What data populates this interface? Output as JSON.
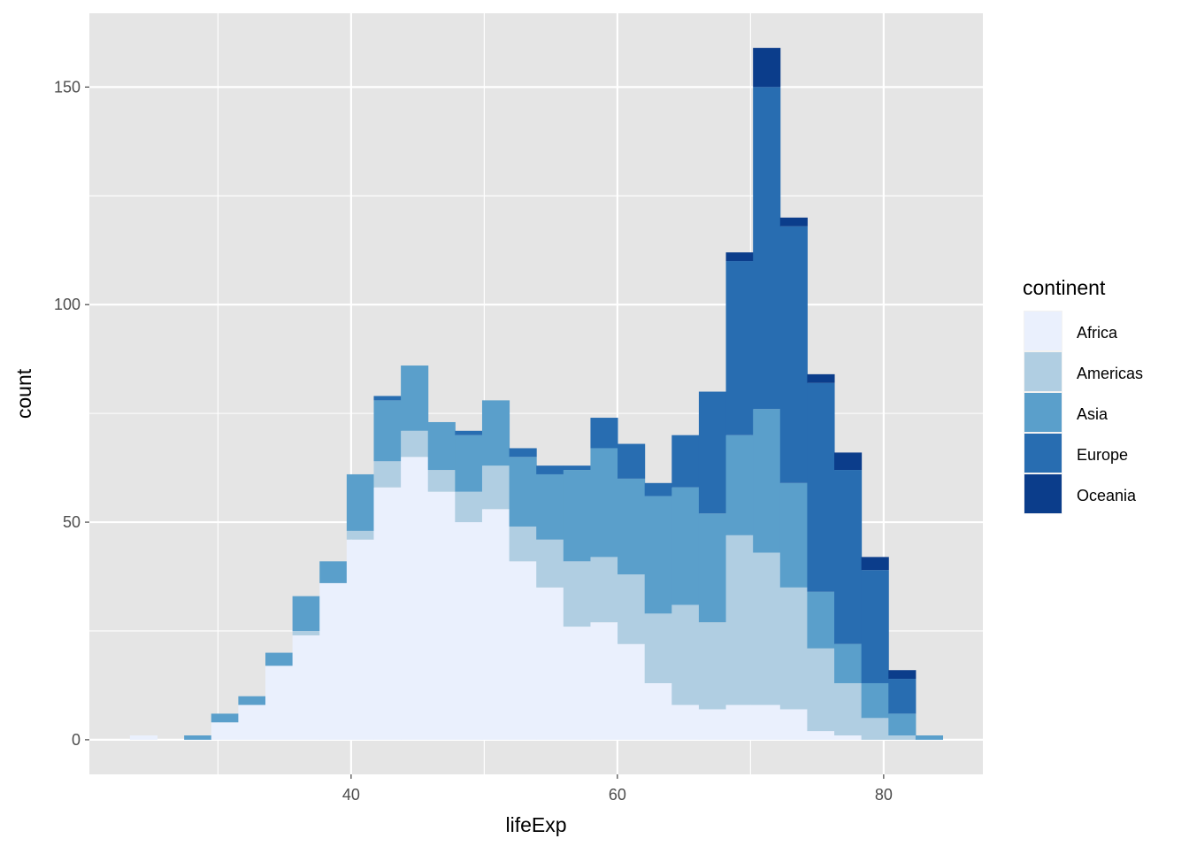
{
  "chart_data": {
    "type": "bar",
    "subtype": "stacked-histogram",
    "xlabel": "lifeExp",
    "ylabel": "count",
    "xlim": [
      20.34,
      87.45
    ],
    "ylim": [
      -7.95,
      166.95
    ],
    "x_ticks": [
      40,
      60,
      80
    ],
    "x_minor_ticks": [
      30,
      50,
      70
    ],
    "y_ticks": [
      0,
      50,
      100,
      150
    ],
    "y_minor_ticks": [
      25,
      75,
      125
    ],
    "grid": true,
    "bin_start": 23.39,
    "bin_width": 2.0346,
    "legend": {
      "title": "continent",
      "placement": "right"
    },
    "series": [
      {
        "name": "Africa",
        "color": "#EAF0FD",
        "values": [
          1,
          0,
          0,
          4,
          8,
          17,
          24,
          36,
          46,
          58,
          65,
          57,
          50,
          53,
          41,
          35,
          26,
          27,
          22,
          13,
          8,
          7,
          8,
          8,
          7,
          2,
          1,
          0,
          0,
          0
        ]
      },
      {
        "name": "Americas",
        "color": "#B0CEE2",
        "values": [
          0,
          0,
          0,
          0,
          0,
          0,
          1,
          0,
          2,
          6,
          6,
          5,
          7,
          10,
          8,
          11,
          15,
          15,
          16,
          16,
          23,
          20,
          39,
          35,
          28,
          19,
          12,
          5,
          1,
          0
        ]
      },
      {
        "name": "Asia",
        "color": "#5A9FCB",
        "values": [
          0,
          0,
          1,
          2,
          2,
          3,
          8,
          5,
          13,
          14,
          15,
          11,
          13,
          15,
          16,
          15,
          21,
          25,
          22,
          27,
          27,
          25,
          23,
          33,
          24,
          13,
          9,
          8,
          5,
          1
        ]
      },
      {
        "name": "Europe",
        "color": "#286DB1",
        "values": [
          0,
          0,
          0,
          0,
          0,
          0,
          0,
          0,
          0,
          1,
          0,
          0,
          1,
          0,
          2,
          2,
          1,
          7,
          8,
          3,
          12,
          28,
          40,
          74,
          59,
          48,
          40,
          26,
          8,
          0
        ]
      },
      {
        "name": "Oceania",
        "color": "#0B3D8B",
        "values": [
          0,
          0,
          0,
          0,
          0,
          0,
          0,
          0,
          0,
          0,
          0,
          0,
          0,
          0,
          0,
          0,
          0,
          0,
          0,
          0,
          0,
          0,
          2,
          9,
          2,
          2,
          4,
          3,
          2,
          0
        ]
      }
    ]
  }
}
